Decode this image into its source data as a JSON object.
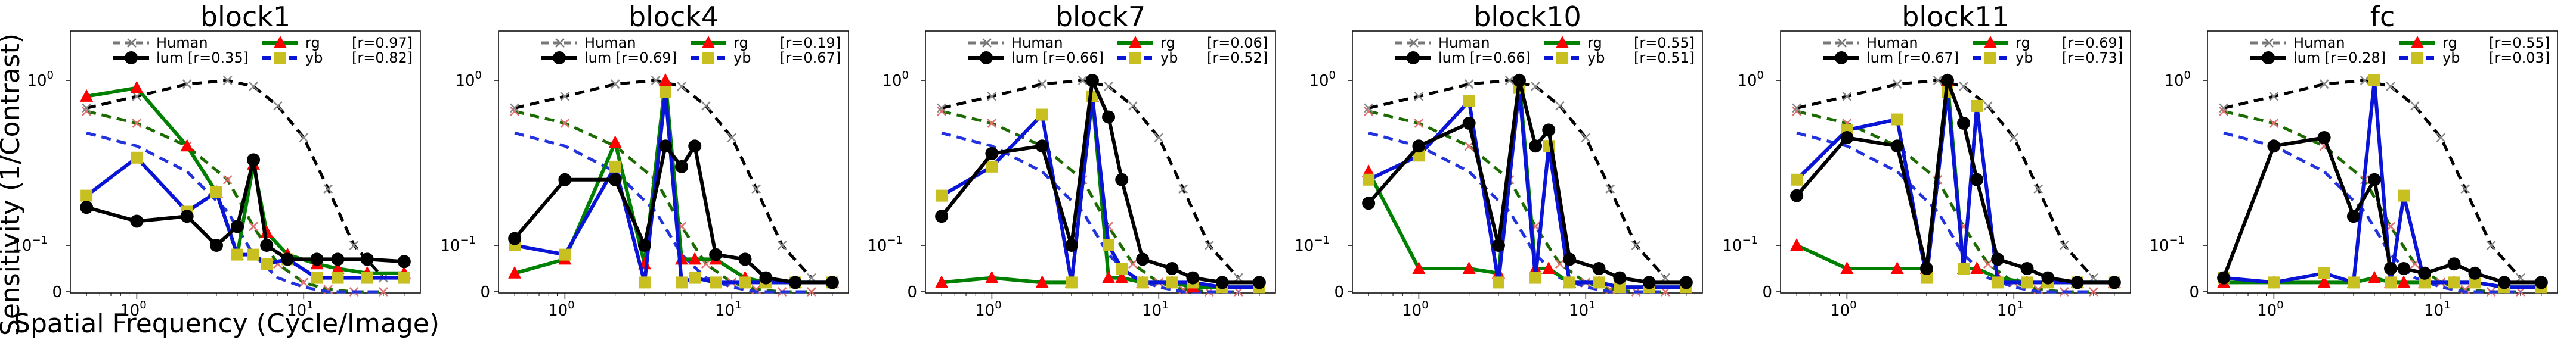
{
  "figure": {
    "ylabel": "Sensitivity (1/Contrast)",
    "xlabel": "Spatial Frequency (Cycle/Image)"
  },
  "colors": {
    "human": "#777777",
    "human_dashed": "#000000",
    "lum": "#000000",
    "rg_marker": "#ff0000",
    "rg_line": "#008000",
    "rg_dashed": "#1b6b00",
    "yb_marker": "#c8c020",
    "yb_line": "#0a14d6",
    "yb_dashed": "#2233dd"
  },
  "chart_data": [
    {
      "type": "line",
      "title": "block1",
      "x": [
        0.5,
        1,
        2,
        3,
        4,
        5,
        6,
        8,
        12,
        16,
        24,
        40
      ],
      "series": [
        {
          "name": "lum",
          "values": [
            0.17,
            0.14,
            0.15,
            0.1,
            0.13,
            0.33,
            0.1,
            0.07,
            0.07,
            0.07,
            0.07,
            0.065
          ]
        },
        {
          "name": "rg",
          "values": [
            0.8,
            0.9,
            0.4,
            0.21,
            0.08,
            0.31,
            0.12,
            0.08,
            0.06,
            0.05,
            0.04,
            0.04
          ]
        },
        {
          "name": "yb",
          "values": [
            0.2,
            0.34,
            0.16,
            0.21,
            0.08,
            0.08,
            0.06,
            0.07,
            0.03,
            0.03,
            0.03,
            0.03
          ]
        }
      ],
      "dashed": {
        "lum": [
          0.68,
          0.8,
          0.95,
          1.0,
          0.92,
          0.7,
          0.45,
          0.22,
          0.1,
          0.03
        ],
        "rg": [
          0.65,
          0.55,
          0.4,
          0.25,
          0.13,
          0.06,
          0.02,
          0.005,
          0.0,
          0.0
        ],
        "yb": [
          0.48,
          0.4,
          0.28,
          0.16,
          0.08,
          0.03,
          0.01,
          0.0,
          0.0,
          0.0
        ]
      },
      "legend": {
        "lum_r": "[r=0.35]",
        "rg_r": "[r=0.97]",
        "yb_r": "[r=0.82]"
      }
    },
    {
      "type": "line",
      "title": "block4",
      "x": [
        0.5,
        1,
        2,
        3,
        4,
        5,
        6,
        8,
        12,
        16,
        24,
        40
      ],
      "series": [
        {
          "name": "lum",
          "values": [
            0.11,
            0.25,
            0.25,
            0.1,
            0.4,
            0.3,
            0.4,
            0.08,
            0.07,
            0.03,
            0.02,
            0.02
          ]
        },
        {
          "name": "rg",
          "values": [
            0.04,
            0.07,
            0.42,
            0.06,
            1.0,
            0.07,
            0.07,
            0.07,
            0.03,
            0.02,
            0.02,
            0.02
          ]
        },
        {
          "name": "yb",
          "values": [
            0.1,
            0.08,
            0.3,
            0.02,
            0.85,
            0.02,
            0.03,
            0.02,
            0.02,
            0.02,
            0.02,
            0.02
          ]
        }
      ],
      "dashed": {
        "lum": [
          0.68,
          0.8,
          0.95,
          1.0,
          0.92,
          0.7,
          0.45,
          0.22,
          0.1,
          0.03
        ],
        "rg": [
          0.65,
          0.55,
          0.4,
          0.25,
          0.13,
          0.06,
          0.02,
          0.005,
          0.0,
          0.0
        ],
        "yb": [
          0.48,
          0.4,
          0.28,
          0.16,
          0.08,
          0.03,
          0.01,
          0.0,
          0.0,
          0.0
        ]
      },
      "legend": {
        "lum_r": "[r=0.69]",
        "rg_r": "[r=0.19]",
        "yb_r": "[r=0.67]"
      }
    },
    {
      "type": "line",
      "title": "block7",
      "x": [
        0.5,
        1,
        2,
        3,
        4,
        5,
        6,
        8,
        12,
        16,
        24,
        40
      ],
      "series": [
        {
          "name": "lum",
          "values": [
            0.15,
            0.36,
            0.4,
            0.1,
            1.0,
            0.6,
            0.25,
            0.07,
            0.05,
            0.03,
            0.02,
            0.02
          ]
        },
        {
          "name": "rg",
          "values": [
            0.02,
            0.03,
            0.02,
            0.02,
            0.8,
            0.03,
            0.03,
            0.02,
            0.02,
            0.01,
            0.01,
            0.01
          ]
        },
        {
          "name": "yb",
          "values": [
            0.2,
            0.3,
            0.62,
            0.02,
            0.8,
            0.1,
            0.05,
            0.02,
            0.02,
            0.02,
            0.01,
            0.01
          ]
        }
      ],
      "dashed": {
        "lum": [
          0.68,
          0.8,
          0.95,
          1.0,
          0.92,
          0.7,
          0.45,
          0.22,
          0.1,
          0.03
        ],
        "rg": [
          0.65,
          0.55,
          0.4,
          0.25,
          0.13,
          0.06,
          0.02,
          0.005,
          0.0,
          0.0
        ],
        "yb": [
          0.48,
          0.4,
          0.28,
          0.16,
          0.08,
          0.03,
          0.01,
          0.0,
          0.0,
          0.0
        ]
      },
      "legend": {
        "lum_r": "[r=0.66]",
        "rg_r": "[r=0.06]",
        "yb_r": "[r=0.52]"
      }
    },
    {
      "type": "line",
      "title": "block10",
      "x": [
        0.5,
        1,
        2,
        3,
        4,
        5,
        6,
        8,
        12,
        16,
        24,
        40
      ],
      "series": [
        {
          "name": "lum",
          "values": [
            0.18,
            0.4,
            0.55,
            0.1,
            1.0,
            0.4,
            0.5,
            0.07,
            0.05,
            0.03,
            0.02,
            0.02
          ]
        },
        {
          "name": "rg",
          "values": [
            0.28,
            0.05,
            0.05,
            0.04,
            1.0,
            0.05,
            0.05,
            0.02,
            0.02,
            0.01,
            0.01,
            0.01
          ]
        },
        {
          "name": "yb",
          "values": [
            0.25,
            0.35,
            0.75,
            0.02,
            0.9,
            0.03,
            0.4,
            0.02,
            0.02,
            0.01,
            0.01,
            0.01
          ]
        }
      ],
      "dashed": {
        "lum": [
          0.68,
          0.8,
          0.95,
          1.0,
          0.92,
          0.7,
          0.45,
          0.22,
          0.1,
          0.03
        ],
        "rg": [
          0.65,
          0.55,
          0.4,
          0.25,
          0.13,
          0.06,
          0.02,
          0.005,
          0.0,
          0.0
        ],
        "yb": [
          0.48,
          0.4,
          0.28,
          0.16,
          0.08,
          0.03,
          0.01,
          0.0,
          0.0,
          0.0
        ]
      },
      "legend": {
        "lum_r": "[r=0.66]",
        "rg_r": "[r=0.55]",
        "yb_r": "[r=0.51]"
      }
    },
    {
      "type": "line",
      "title": "block11",
      "x": [
        0.5,
        1,
        2,
        3,
        4,
        5,
        6,
        8,
        12,
        16,
        24,
        40
      ],
      "series": [
        {
          "name": "lum",
          "values": [
            0.2,
            0.45,
            0.4,
            0.05,
            1.0,
            0.55,
            0.25,
            0.07,
            0.05,
            0.03,
            0.02,
            0.02
          ]
        },
        {
          "name": "rg",
          "values": [
            0.1,
            0.05,
            0.05,
            0.05,
            1.0,
            0.05,
            0.05,
            0.03,
            0.02,
            0.02,
            0.02,
            0.02
          ]
        },
        {
          "name": "yb",
          "values": [
            0.25,
            0.5,
            0.58,
            0.03,
            0.85,
            0.05,
            0.7,
            0.02,
            0.02,
            0.02,
            0.02,
            0.02
          ]
        }
      ],
      "dashed": {
        "lum": [
          0.68,
          0.8,
          0.95,
          1.0,
          0.92,
          0.7,
          0.45,
          0.22,
          0.1,
          0.03
        ],
        "rg": [
          0.65,
          0.55,
          0.4,
          0.25,
          0.13,
          0.06,
          0.02,
          0.005,
          0.0,
          0.0
        ],
        "yb": [
          0.48,
          0.4,
          0.28,
          0.16,
          0.08,
          0.03,
          0.01,
          0.0,
          0.0,
          0.0
        ]
      },
      "legend": {
        "lum_r": "[r=0.67]",
        "rg_r": "[r=0.69]",
        "yb_r": "[r=0.73]"
      }
    },
    {
      "type": "line",
      "title": "fc",
      "x": [
        0.5,
        1,
        2,
        3,
        4,
        5,
        6,
        8,
        12,
        16,
        24,
        40
      ],
      "series": [
        {
          "name": "lum",
          "values": [
            0.03,
            0.4,
            0.45,
            0.15,
            0.25,
            0.05,
            0.05,
            0.04,
            0.06,
            0.04,
            0.02,
            0.02
          ]
        },
        {
          "name": "rg",
          "values": [
            0.02,
            0.02,
            0.02,
            0.02,
            0.03,
            0.02,
            0.02,
            0.02,
            0.02,
            0.02,
            0.01,
            0.01
          ]
        },
        {
          "name": "yb",
          "values": [
            0.03,
            0.02,
            0.04,
            0.02,
            1.0,
            0.02,
            0.2,
            0.02,
            0.02,
            0.02,
            0.01,
            0.01
          ]
        }
      ],
      "dashed": {
        "lum": [
          0.68,
          0.8,
          0.95,
          1.0,
          0.92,
          0.7,
          0.45,
          0.22,
          0.1,
          0.03
        ],
        "rg": [
          0.65,
          0.55,
          0.4,
          0.25,
          0.13,
          0.06,
          0.02,
          0.005,
          0.0,
          0.0
        ],
        "yb": [
          0.48,
          0.4,
          0.28,
          0.16,
          0.08,
          0.03,
          0.01,
          0.0,
          0.0,
          0.0
        ]
      },
      "legend": {
        "lum_r": "[r=0.28]",
        "rg_r": "[r=0.55]",
        "yb_r": "[r=0.03]"
      }
    }
  ],
  "legend_labels": {
    "human": "Human",
    "lum": "lum",
    "rg": "rg",
    "yb": "yb"
  },
  "axis": {
    "xtick_labels": [
      "10",
      "10"
    ],
    "xtick_exponents": [
      "0",
      "1"
    ],
    "ytick_labels": [
      "10",
      "0"
    ],
    "ytick_exponents": [
      "0",
      "−1"
    ],
    "human_x": [
      0.5,
      1,
      2,
      3.5,
      5,
      7,
      10,
      14,
      20,
      30
    ]
  }
}
